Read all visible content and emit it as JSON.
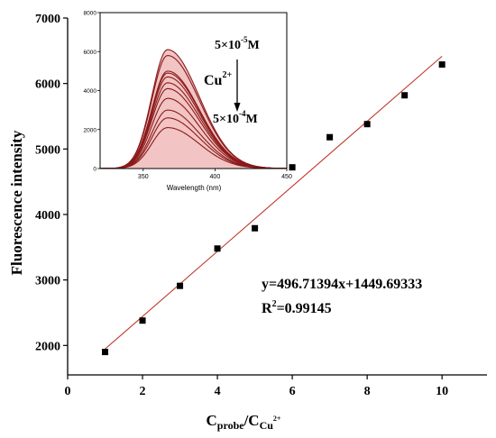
{
  "chart_data": [
    {
      "type": "scatter",
      "xlabel_main": "C",
      "xlabel_sub1": "probe",
      "xlabel_slash": "/C",
      "xlabel_sub2": "Cu",
      "xlabel_sup": "2+",
      "ylabel": "Fluorescence intensity",
      "xlim": [
        0,
        11.2
      ],
      "ylim": [
        1550,
        7000
      ],
      "xticks": [
        "0",
        "2",
        "4",
        "6",
        "8",
        "10"
      ],
      "yticks": [
        "2000",
        "3000",
        "4000",
        "5000",
        "6000",
        "7000"
      ],
      "points": [
        {
          "x": 1,
          "y": 1900
        },
        {
          "x": 2,
          "y": 2380
        },
        {
          "x": 3,
          "y": 2910
        },
        {
          "x": 4,
          "y": 3480
        },
        {
          "x": 5,
          "y": 3790
        },
        {
          "x": 6,
          "y": 4720
        },
        {
          "x": 7,
          "y": 5180
        },
        {
          "x": 8,
          "y": 5380
        },
        {
          "x": 9,
          "y": 5820
        },
        {
          "x": 10,
          "y": 6290
        }
      ],
      "fit": {
        "slope": 496.71394,
        "intercept": 1449.69333,
        "x_range": [
          1,
          10
        ],
        "color": "#c0392b"
      },
      "equation": "y=496.71394x+1449.69333",
      "r2_label": "R",
      "r2_sup": "2",
      "r2_value": "=0.99145",
      "marker_color": "#000000"
    },
    {
      "type": "line",
      "xlabel": "Wavelength (nm)",
      "xlim": [
        320,
        450
      ],
      "ylim": [
        0,
        8000
      ],
      "xticks": [
        "350",
        "400",
        "450"
      ],
      "yticks": [
        "0",
        "2000",
        "4000",
        "6000",
        "8000"
      ],
      "peak_wavelength": 367,
      "peak_values": [
        6100,
        5800,
        5000,
        4900,
        4700,
        4400,
        4100,
        3600,
        3000,
        2600,
        2100
      ],
      "line_color": "#8b1a1a",
      "fill_color": "#f2c4c4",
      "annotation_top": "5×10",
      "annotation_top_sup": "-5",
      "annotation_top_unit": "M",
      "annotation_ion": "Cu",
      "annotation_ion_sup": "2+",
      "annotation_bottom": "5×10",
      "annotation_bottom_sup": "-4",
      "annotation_bottom_unit": "M"
    }
  ]
}
